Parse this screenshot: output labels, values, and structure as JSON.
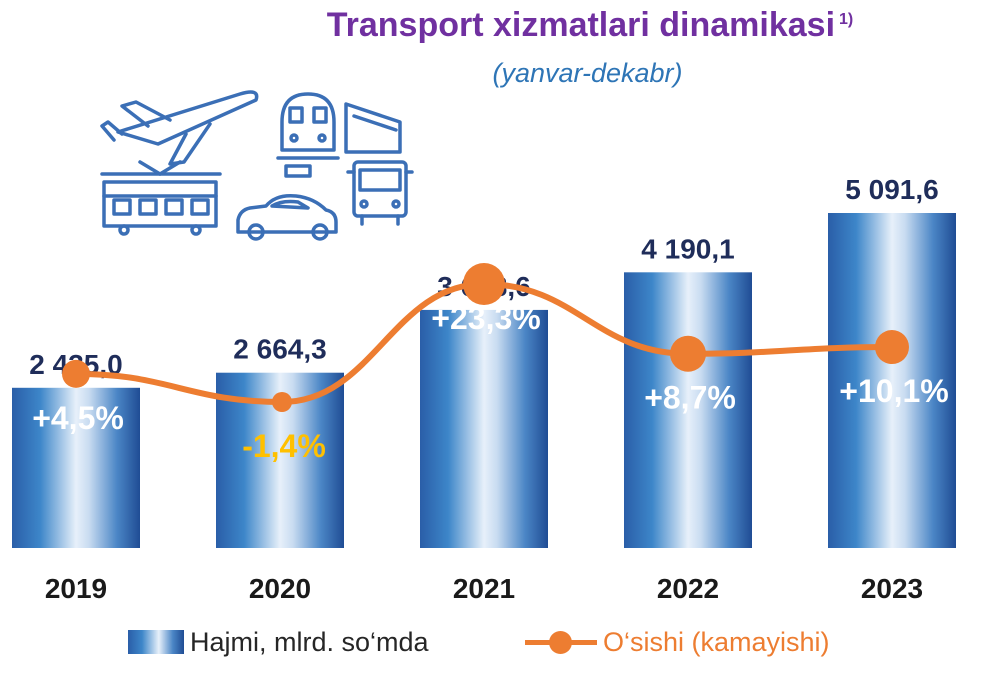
{
  "title": "Transport xizmatlari dinamikasi",
  "title_note": "1)",
  "subtitle": "(yanvar-dekabr)",
  "icons": [
    "airplane-icon",
    "train-icon",
    "tram-icon",
    "bus-icon",
    "car-icon"
  ],
  "colors": {
    "title": "#7030a0",
    "subtitle": "#2e75b6",
    "bar": "#2e6db4",
    "line": "#ed7d31",
    "negative_label": "#ffc000",
    "value_label": "#1f2d5a"
  },
  "chart_data": {
    "type": "bar",
    "categories": [
      "2019",
      "2020",
      "2021",
      "2022",
      "2023"
    ],
    "series": [
      {
        "name": "Hajmi, mlrd. so‘mda",
        "type": "bar",
        "values": [
          2435.0,
          2664.3,
          3618.6,
          4190.1,
          5091.6
        ],
        "labels": [
          "2 435,0",
          "2 664,3",
          "3 618,6",
          "4 190,1",
          "5 091,6"
        ]
      },
      {
        "name": "O‘sishi (kamayishi)",
        "type": "line",
        "axis": "secondary",
        "values": [
          4.5,
          -1.4,
          23.3,
          8.7,
          10.1
        ],
        "labels": [
          "+4,5%",
          "-1,4%",
          "+23,3%",
          "+8,7%",
          "+10,1%"
        ]
      }
    ],
    "legend": "bottom",
    "grid": false
  }
}
